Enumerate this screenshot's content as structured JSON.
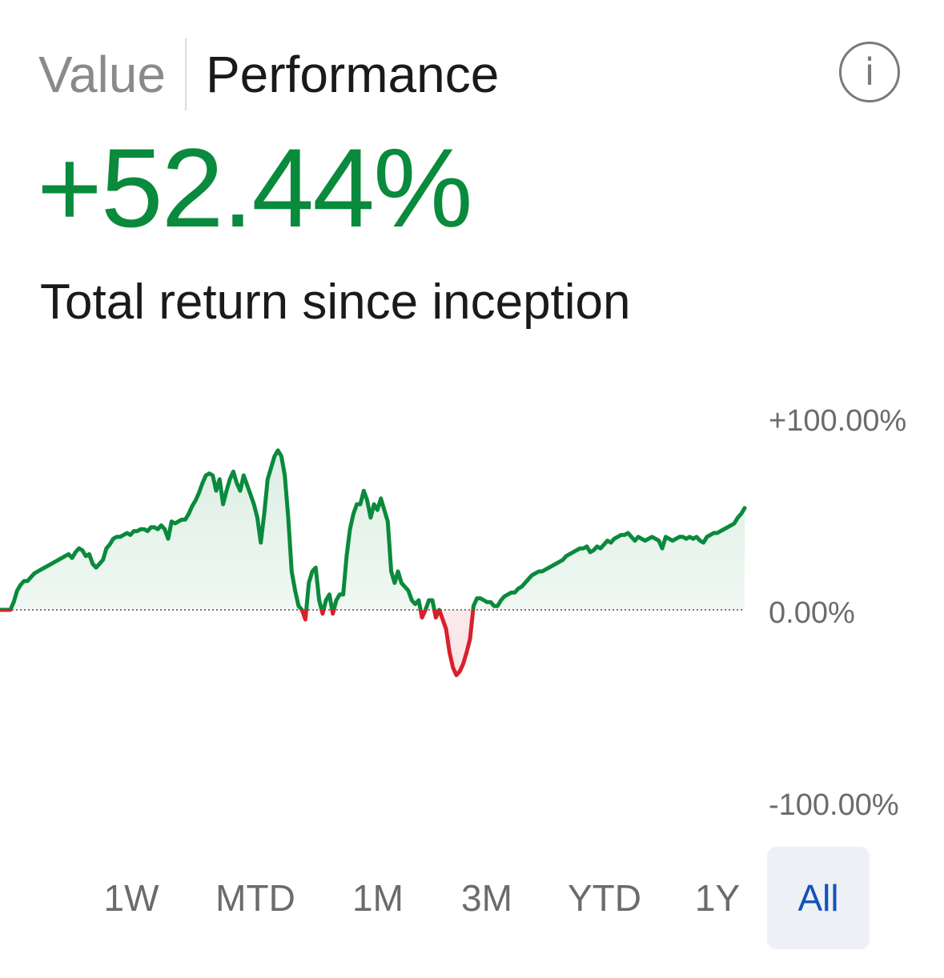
{
  "tabs": [
    {
      "label": "Value",
      "active": false
    },
    {
      "label": "Performance",
      "active": true
    }
  ],
  "info_icon": "info-icon",
  "headline": {
    "value": "+52.44%",
    "subtitle": "Total return since inception",
    "color": "#0a8a3c"
  },
  "chart_data": {
    "type": "area",
    "title": "",
    "xlabel": "",
    "ylabel": "",
    "ylim": [
      -100,
      100
    ],
    "y_tick_labels": [
      "+100.00%",
      "0.00%",
      "-100.00%"
    ],
    "baseline_label": "0.00%",
    "grid": false,
    "positive_color": "#0a8a3c",
    "negative_color": "#d8202c",
    "series": [
      {
        "values": [
          0,
          0,
          0,
          0,
          4,
          10,
          13,
          15,
          15,
          17,
          19,
          20,
          21,
          22,
          23,
          24,
          25,
          26,
          27,
          28,
          29,
          27,
          30,
          32,
          31,
          28,
          29,
          24,
          22,
          24,
          26,
          32,
          34,
          37,
          38,
          38,
          39,
          40,
          39,
          41,
          41,
          42,
          42,
          41,
          43,
          43,
          42,
          44,
          42,
          37,
          46,
          45,
          46,
          47,
          47,
          50,
          54,
          57,
          61,
          66,
          70,
          71,
          70,
          62,
          68,
          55,
          62,
          68,
          72,
          66,
          62,
          70,
          65,
          60,
          55,
          48,
          35,
          50,
          68,
          74,
          80,
          83,
          80,
          70,
          48,
          20,
          10,
          2,
          0,
          -5,
          14,
          20,
          22,
          5,
          -2,
          5,
          8,
          -2,
          5,
          8,
          8,
          28,
          42,
          50,
          55,
          55,
          62,
          57,
          48,
          55,
          52,
          58,
          52,
          46,
          20,
          14,
          20,
          14,
          12,
          10,
          5,
          3,
          5,
          -4,
          0,
          5,
          5,
          -4,
          0,
          -5,
          -10,
          -22,
          -30,
          -34,
          -32,
          -28,
          -22,
          -15,
          2,
          6,
          6,
          5,
          4,
          4,
          2,
          2,
          5,
          7,
          8,
          9,
          9,
          11,
          12,
          14,
          16,
          18,
          19,
          20,
          20,
          21,
          22,
          23,
          24,
          25,
          26,
          28,
          29,
          30,
          31,
          32,
          32,
          33,
          30,
          31,
          33,
          32,
          34,
          36,
          35,
          37,
          38,
          39,
          39,
          40,
          38,
          36,
          38,
          37,
          36,
          37,
          38,
          37,
          36,
          32,
          38,
          37,
          36,
          37,
          38,
          38,
          37,
          38,
          37,
          38,
          36,
          35,
          38,
          39,
          40,
          40,
          41,
          42,
          43,
          44,
          45,
          48,
          50,
          53
        ]
      }
    ]
  },
  "ranges": [
    {
      "label": "1W",
      "selected": false
    },
    {
      "label": "MTD",
      "selected": false
    },
    {
      "label": "1M",
      "selected": false
    },
    {
      "label": "3M",
      "selected": false
    },
    {
      "label": "YTD",
      "selected": false
    },
    {
      "label": "1Y",
      "selected": false
    },
    {
      "label": "All",
      "selected": true
    }
  ],
  "colors": {
    "accent": "#1352b8",
    "selected_bg": "#edf0f5",
    "muted_text": "#6b6b6b"
  }
}
